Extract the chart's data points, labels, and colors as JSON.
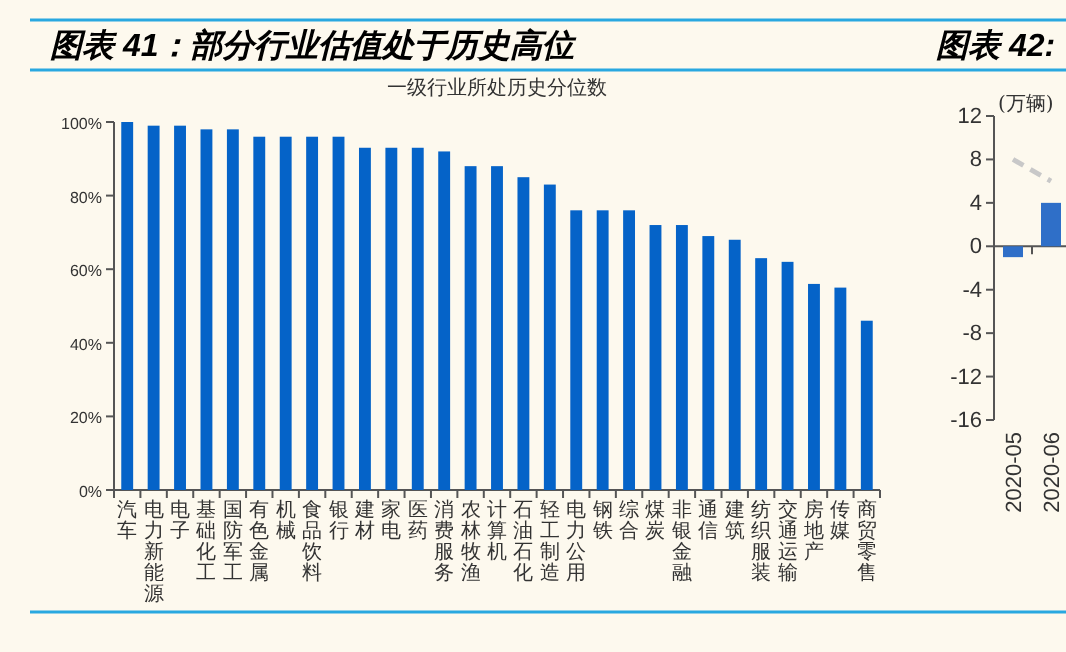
{
  "chart_data": [
    {
      "type": "bar",
      "title": "图表 41：部分行业估值处于历史高位",
      "subtitle": "一级行业所处历史分位数",
      "categories": [
        "汽车",
        "电力新能源",
        "电子",
        "基础化工",
        "国防军工",
        "有色金属",
        "机械",
        "食品饮料",
        "银行",
        "建材",
        "家电",
        "医药",
        "消费服务",
        "农林牧渔",
        "计算机",
        "石油石化",
        "轻工制造",
        "电力公用",
        "钢铁",
        "综合",
        "煤炭",
        "非银金融",
        "通信",
        "建筑",
        "纺织服装",
        "交通运输",
        "房地产",
        "传媒",
        "商贸零售"
      ],
      "values": [
        100,
        99,
        99,
        98,
        98,
        96,
        96,
        96,
        96,
        93,
        93,
        93,
        92,
        88,
        88,
        85,
        83,
        76,
        76,
        76,
        72,
        72,
        69,
        68,
        63,
        62,
        56,
        55,
        46
      ],
      "color": "#0563c8",
      "ylim": [
        0,
        100
      ],
      "yticks": [
        {
          "value": 0,
          "label": "0%"
        },
        {
          "value": 20,
          "label": "20%"
        },
        {
          "value": 40,
          "label": "40%"
        },
        {
          "value": 60,
          "label": "60%"
        },
        {
          "value": 80,
          "label": "80%"
        },
        {
          "value": 100,
          "label": "100%"
        }
      ]
    },
    {
      "type": "bar",
      "title": "图表 42:",
      "ylabel": "(万辆)",
      "categories": [
        "2020-05",
        "2020-06"
      ],
      "series": [
        {
          "color": "#2f6fc8",
          "values": [
            -1,
            4
          ]
        },
        {
          "type": "line",
          "color": "#c8c8c8",
          "line_style": "dashed",
          "values": [
            8,
            6
          ]
        }
      ],
      "ylim": [
        -16,
        12
      ],
      "yticks": [
        -16,
        -12,
        -8,
        -4,
        0,
        4,
        8,
        12
      ]
    }
  ]
}
